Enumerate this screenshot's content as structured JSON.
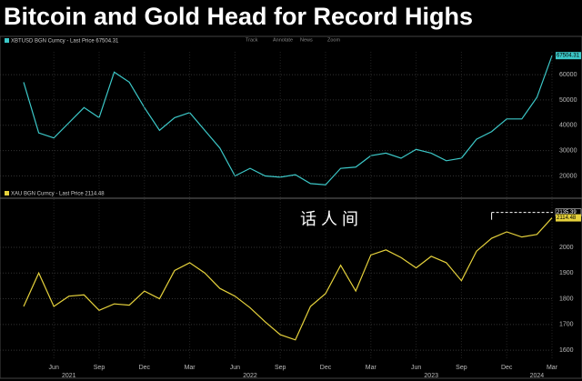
{
  "title": "Bitcoin and Gold Head for Record Highs",
  "toolbar": [
    "Track",
    "Annotate",
    "News",
    "Zoom"
  ],
  "watermark": "话 人 间",
  "chart_data": [
    {
      "type": "line",
      "series": [
        {
          "name": "XBTUSD BGN Curncy - Last Price 67504.31",
          "color": "#3cc8c8",
          "values": [
            57000,
            37000,
            35000,
            41000,
            47000,
            43000,
            61000,
            57000,
            47000,
            38000,
            43000,
            45000,
            38000,
            31000,
            20000,
            23000,
            20000,
            19500,
            20500,
            17000,
            16500,
            23000,
            23500,
            28000,
            29000,
            27000,
            30500,
            29000,
            26000,
            27000,
            34500,
            37500,
            42500,
            42500,
            51000,
            67504.31
          ],
          "last_label": "67504.31"
        }
      ],
      "ylim": [
        13000,
        69000
      ],
      "yticks": [
        20000,
        30000,
        40000,
        50000,
        60000
      ],
      "grid": true
    },
    {
      "type": "line",
      "series": [
        {
          "name": "XAU BGN Curncy - Last Price 2114.48",
          "color": "#e6d23c",
          "values": [
            1770,
            1900,
            1770,
            1810,
            1815,
            1755,
            1780,
            1775,
            1830,
            1800,
            1910,
            1940,
            1900,
            1840,
            1810,
            1765,
            1710,
            1660,
            1640,
            1770,
            1820,
            1930,
            1830,
            1970,
            1990,
            1960,
            1920,
            1965,
            1940,
            1870,
            1985,
            2035,
            2060,
            2040,
            2050,
            2114.48
          ],
          "last_label": "2114.48"
        }
      ],
      "reference": 2135.39,
      "categories": [
        null,
        null,
        "Jun",
        null,
        null,
        "Sep",
        null,
        null,
        "Dec",
        null,
        null,
        "Mar",
        null,
        null,
        "Jun",
        null,
        null,
        "Sep",
        null,
        null,
        "Dec",
        null,
        null,
        "Mar",
        null,
        null,
        "Jun",
        null,
        null,
        "Sep",
        null,
        null,
        "Dec",
        null,
        null,
        "Mar"
      ],
      "years": [
        null,
        null,
        null,
        "2021",
        null,
        null,
        null,
        null,
        null,
        null,
        null,
        null,
        null,
        null,
        null,
        "2022",
        null,
        null,
        null,
        null,
        null,
        null,
        null,
        null,
        null,
        null,
        null,
        "2023",
        null,
        null,
        null,
        null,
        null,
        null,
        "2024",
        null
      ],
      "ylim": [
        1565,
        2166
      ],
      "yticks": [
        1600,
        1700,
        1800,
        1900,
        2000
      ],
      "grid": true
    }
  ]
}
